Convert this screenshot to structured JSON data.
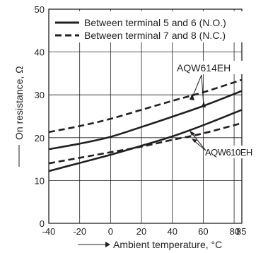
{
  "chart_data": {
    "type": "line",
    "title": "",
    "xlabel": "Ambient temperature, °C",
    "ylabel": "On resistance, Ω",
    "xlim": [
      -40,
      85
    ],
    "ylim": [
      0,
      50
    ],
    "x_ticks": [
      -40,
      -20,
      0,
      20,
      40,
      60,
      80,
      85
    ],
    "x_tick_labels": [
      "-40",
      "-20",
      "0",
      "20",
      "40",
      "60",
      "80",
      "85"
    ],
    "y_ticks": [
      0,
      10,
      20,
      30,
      40,
      50
    ],
    "grid": true,
    "legend_position": "top-left",
    "legend": [
      {
        "label": "Between terminal 5 and 6 (N.O.)",
        "style": "solid"
      },
      {
        "label": "Between terminal 7 and 8 (N.C.)",
        "style": "dashed"
      }
    ],
    "series": [
      {
        "model": "AQW614EH",
        "style": "solid",
        "x": [
          -40,
          -20,
          0,
          20,
          40,
          60,
          85
        ],
        "y": [
          17.3,
          18.6,
          20.2,
          22.5,
          24.9,
          27.4,
          30.9
        ]
      },
      {
        "model": "AQW614EH",
        "style": "dashed",
        "x": [
          -40,
          -20,
          0,
          20,
          40,
          60,
          85
        ],
        "y": [
          21.3,
          22.7,
          24.4,
          26.5,
          28.6,
          30.6,
          33.5
        ]
      },
      {
        "model": "AQW610EH",
        "style": "solid",
        "x": [
          -40,
          -20,
          0,
          20,
          40,
          60,
          85
        ],
        "y": [
          12.2,
          14.1,
          16.0,
          18.1,
          20.3,
          22.9,
          26.5
        ]
      },
      {
        "model": "AQW610EH",
        "style": "dashed",
        "x": [
          -40,
          -20,
          0,
          20,
          40,
          60,
          85
        ],
        "y": [
          14.0,
          15.3,
          16.6,
          17.9,
          19.5,
          21.0,
          23.4
        ]
      }
    ],
    "annotations": [
      "AQW614EH",
      "AQW610EH"
    ],
    "colors": {
      "line": "#231f20",
      "grid": "#231f20"
    }
  }
}
